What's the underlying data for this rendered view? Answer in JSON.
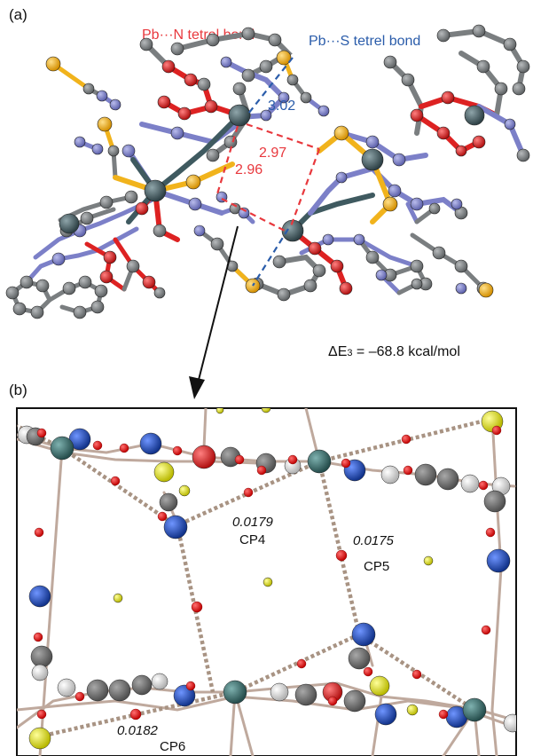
{
  "panel_a": {
    "label": "(a)",
    "pbn_label": "Pb···N tetrel bond",
    "pbs_label": "Pb···S tetrel bond",
    "dist_pbs": "3.02",
    "dist_pbn_1": "2.97",
    "dist_pbn_2": "2.96",
    "energy_prefix": "ΔE",
    "energy_sub": "3",
    "energy_value": " = –68.8 kcal/mol"
  },
  "panel_b": {
    "label": "(b)",
    "cp4_value": "0.0179",
    "cp4_label": "CP4",
    "cp5_value": "0.0175",
    "cp5_label": "CP5",
    "cp6_value": "0.0182",
    "cp6_label": "CP6"
  },
  "colors": {
    "pbn": "#e8383d",
    "pbs": "#2a5caa",
    "pb": "#3f5a60",
    "carbon": "#7a7e80",
    "nitrogen": "#7c80c8",
    "oxygen": "#dd2222",
    "sulfur": "#f1b31c",
    "bond_b": "#bfa99d",
    "cp": "#e61e1e",
    "n_b": "#1f4fb4",
    "s_b": "#e6e61e"
  }
}
